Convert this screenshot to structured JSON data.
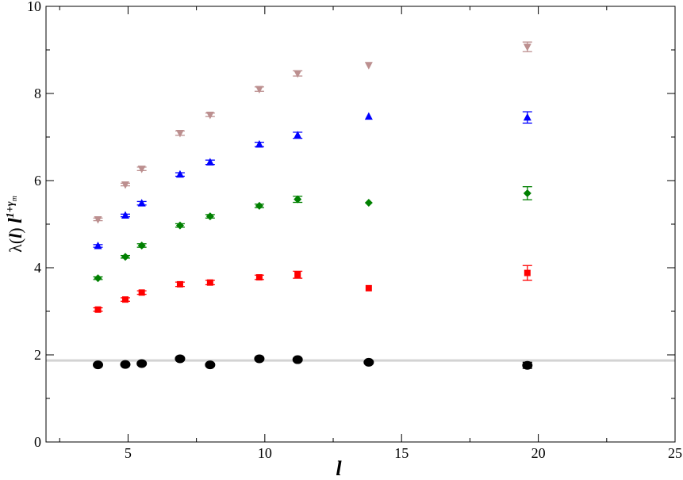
{
  "chart_data": {
    "type": "scatter",
    "xlabel": "l",
    "ylabel": {
      "base": "λ(",
      "var": "l",
      "close": ") ",
      "power_base": "l",
      "exp_main": "1+γ",
      "exp_sub": "m"
    },
    "xlim": [
      2,
      25
    ],
    "ylim": [
      0,
      10
    ],
    "x_major_ticks": [
      5,
      10,
      15,
      20,
      25
    ],
    "x_minor_ticks": [
      2.5,
      7.5,
      12.5,
      17.5,
      22.5
    ],
    "y_major_ticks": [
      0,
      2,
      4,
      6,
      8,
      10
    ],
    "y_minor_ticks": [
      1,
      3,
      5,
      7,
      9
    ],
    "x_tick_labels": [
      "5",
      "10",
      "15",
      "20",
      "25"
    ],
    "y_tick_labels": [
      "0",
      "2",
      "4",
      "6",
      "8",
      "10"
    ],
    "grid": false,
    "reference_line": {
      "y": 1.87,
      "color": "#d3d3d3"
    },
    "series": [
      {
        "marker": "circle",
        "color": "#000000",
        "x": [
          3.9,
          4.9,
          5.5,
          6.9,
          8.0,
          9.8,
          11.2,
          13.8,
          19.6
        ],
        "y": [
          1.77,
          1.78,
          1.8,
          1.91,
          1.77,
          1.91,
          1.89,
          1.83,
          1.76
        ],
        "err": [
          0.03,
          0.03,
          0.03,
          0.03,
          0.03,
          0.03,
          0.03,
          0.02,
          0.07
        ]
      },
      {
        "marker": "square",
        "color": "#ff0000",
        "x": [
          3.9,
          4.9,
          5.5,
          6.9,
          8.0,
          9.8,
          11.2,
          13.8,
          19.6
        ],
        "y": [
          3.04,
          3.27,
          3.43,
          3.62,
          3.66,
          3.78,
          3.84,
          3.53,
          3.88
        ],
        "err": [
          0.04,
          0.04,
          0.04,
          0.05,
          0.05,
          0.05,
          0.08,
          0.0,
          0.17
        ]
      },
      {
        "marker": "diamond",
        "color": "#008000",
        "x": [
          3.9,
          4.9,
          5.5,
          6.9,
          8.0,
          9.8,
          11.2,
          13.8,
          19.6
        ],
        "y": [
          3.76,
          4.25,
          4.51,
          4.97,
          5.18,
          5.42,
          5.57,
          5.49,
          5.71
        ],
        "err": [
          0.03,
          0.03,
          0.04,
          0.04,
          0.04,
          0.04,
          0.07,
          0.0,
          0.15
        ]
      },
      {
        "marker": "triangle-up",
        "color": "#0000ff",
        "x": [
          3.9,
          4.9,
          5.5,
          6.9,
          8.0,
          9.8,
          11.2,
          13.8,
          19.6
        ],
        "y": [
          4.5,
          5.2,
          5.48,
          6.14,
          6.42,
          6.83,
          7.04,
          7.47,
          7.45
        ],
        "err": [
          0.03,
          0.03,
          0.04,
          0.04,
          0.05,
          0.05,
          0.07,
          0.0,
          0.13
        ]
      },
      {
        "marker": "triangle-down",
        "color": "#bc8f8f",
        "x": [
          3.9,
          4.9,
          5.5,
          6.9,
          8.0,
          9.8,
          11.2,
          13.8,
          19.6
        ],
        "y": [
          5.11,
          5.91,
          6.27,
          7.09,
          7.51,
          8.1,
          8.46,
          8.65,
          9.07
        ],
        "err": [
          0.03,
          0.03,
          0.04,
          0.05,
          0.04,
          0.05,
          0.06,
          0.0,
          0.11
        ]
      }
    ]
  }
}
